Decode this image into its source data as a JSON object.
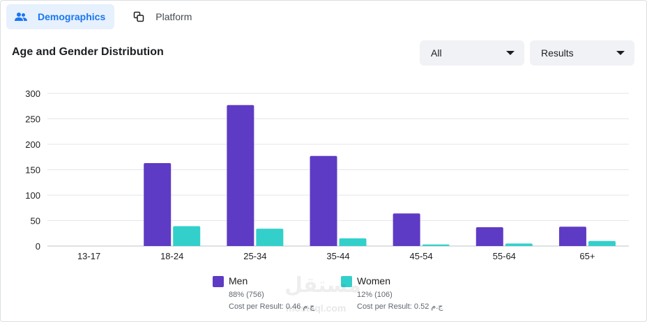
{
  "tabs": [
    {
      "label": "Demographics",
      "icon": "people-icon",
      "active": true
    },
    {
      "label": "Platform",
      "icon": "copy-icon",
      "active": false
    }
  ],
  "section_title": "Age and Gender Distribution",
  "filters": {
    "audience": "All",
    "metric": "Results"
  },
  "colors": {
    "men": "#5e3bc4",
    "women": "#33d0cb",
    "accent": "#1877f2"
  },
  "legend": [
    {
      "name": "Men",
      "share": "88% (756)",
      "cost": "Cost per Result: 0.46 ج.م"
    },
    {
      "name": "Women",
      "share": "12% (106)",
      "cost": "Cost per Result: 0.52 ج.م"
    }
  ],
  "watermark": {
    "arabic": "مستقل",
    "latin": "mostaql.com"
  },
  "chart_data": {
    "type": "bar",
    "categories": [
      "13-17",
      "18-24",
      "25-34",
      "35-44",
      "45-54",
      "55-64",
      "65+"
    ],
    "series": [
      {
        "name": "Men",
        "values": [
          0,
          163,
          277,
          177,
          64,
          37,
          38
        ]
      },
      {
        "name": "Women",
        "values": [
          0,
          39,
          34,
          15,
          3,
          5,
          10
        ]
      }
    ],
    "yticks": [
      0,
      50,
      100,
      150,
      200,
      250,
      300
    ],
    "ylim": [
      0,
      300
    ],
    "grid": true,
    "legend_position": "bottom"
  }
}
